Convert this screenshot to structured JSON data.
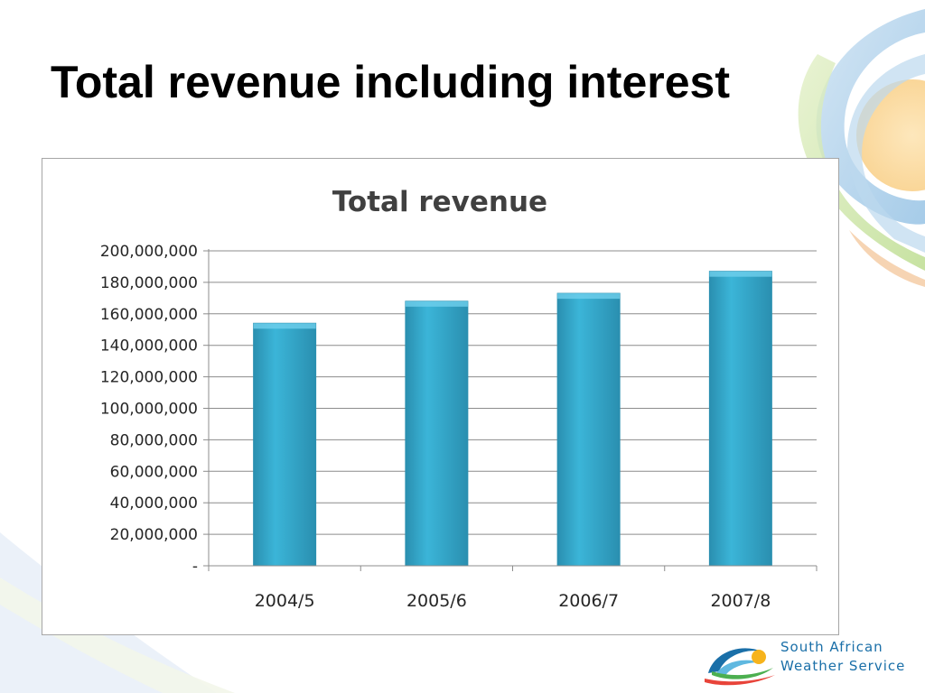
{
  "slide": {
    "title": "Total revenue including interest"
  },
  "logo": {
    "line1": "South African",
    "line2": "Weather Service"
  },
  "colors": {
    "bar": "#3bb5d8",
    "bar_dark": "#2a8fb0",
    "grid": "#8c8c8c",
    "logo_text": "#1a6fa8"
  },
  "chart_data": {
    "type": "bar",
    "title": "Total revenue",
    "xlabel": "",
    "ylabel": "",
    "categories": [
      "2004/5",
      "2005/6",
      "2006/7",
      "2007/8"
    ],
    "values": [
      154000000,
      168000000,
      173000000,
      187000000
    ],
    "ylim": [
      0,
      200000000
    ],
    "yticks": [
      0,
      20000000,
      40000000,
      60000000,
      80000000,
      100000000,
      120000000,
      140000000,
      160000000,
      180000000,
      200000000
    ],
    "ytick_labels": [
      "-",
      "20,000,000",
      "40,000,000",
      "60,000,000",
      "80,000,000",
      "100,000,000",
      "120,000,000",
      "140,000,000",
      "160,000,000",
      "180,000,000",
      "200,000,000"
    ],
    "grid": true,
    "legend": "none"
  }
}
